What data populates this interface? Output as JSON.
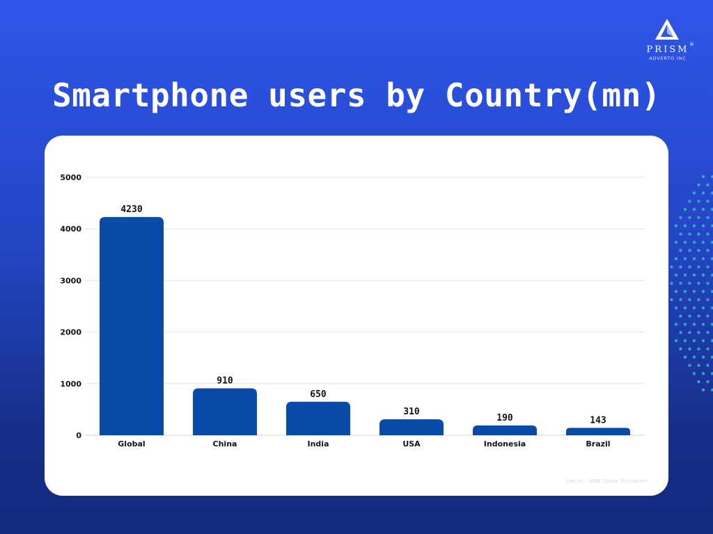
{
  "title": "Smartphone users by Country(mn)",
  "logo": {
    "name": "PRISM",
    "subtitle": "ADVERTO INC",
    "registered": "®"
  },
  "source": "Source: GSMA Ipsos Estimates",
  "colors": {
    "bar": "#0a4aa8",
    "background_top": "#2f55ea",
    "background_bottom": "#142a7e",
    "dots": "#38b6c9",
    "grid": "#e3e3e3"
  },
  "chart_data": {
    "type": "bar",
    "categories": [
      "Global",
      "China",
      "India",
      "USA",
      "Indonesia",
      "Brazil"
    ],
    "values": [
      4230,
      910,
      650,
      310,
      190,
      143
    ],
    "value_labels": [
      "4230",
      "910",
      "650",
      "310",
      "190",
      "143"
    ],
    "ylim": [
      0,
      5000
    ],
    "yticks": [
      0,
      1000,
      2000,
      3000,
      4000,
      5000
    ],
    "ytick_labels": [
      "0",
      "1000",
      "2000",
      "3000",
      "4000",
      "5000"
    ],
    "grid": true,
    "legend": "none"
  }
}
